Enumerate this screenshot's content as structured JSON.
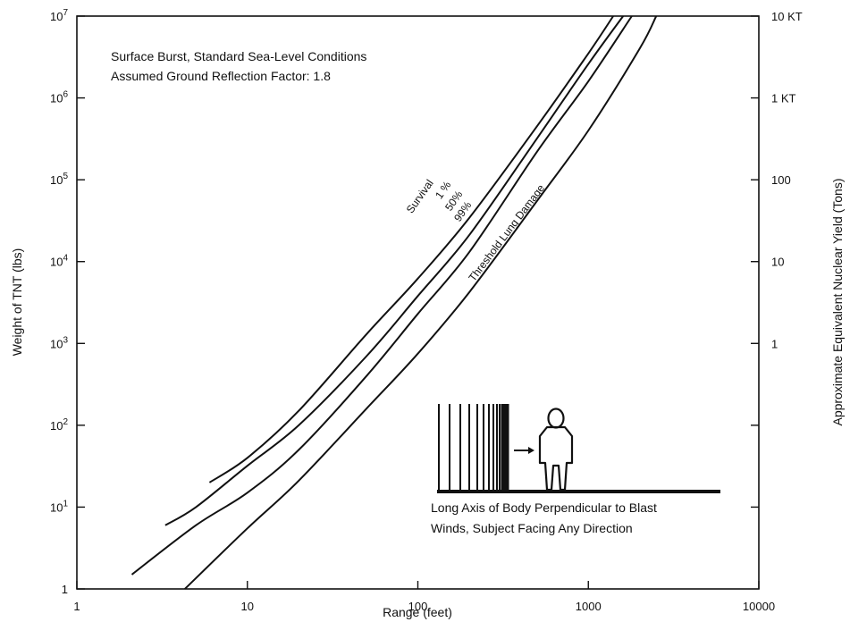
{
  "chart_data": {
    "type": "line",
    "title": "",
    "annotation_lines": [
      "Surface Burst, Standard Sea-Level Conditions",
      "Assumed Ground Reflection Factor: 1.8"
    ],
    "xlabel": "Range (feet)",
    "ylabel": "Weight of TNT (lbs)",
    "y2label": "Approximate Equivalent Nuclear Yield (Tons)",
    "x_scale": "log",
    "y_scale": "log",
    "xlim": [
      1,
      10000
    ],
    "ylim": [
      1,
      10000000
    ],
    "x_ticks": [
      {
        "value": 1,
        "label": "1"
      },
      {
        "value": 10,
        "label": "10"
      },
      {
        "value": 100,
        "label": "100"
      },
      {
        "value": 1000,
        "label": "1000"
      },
      {
        "value": 10000,
        "label": "10000"
      }
    ],
    "y_ticks": [
      {
        "value": 1,
        "label": "1"
      },
      {
        "value": 10,
        "label": "10",
        "exp": "1"
      },
      {
        "value": 100,
        "label": "10",
        "exp": "2"
      },
      {
        "value": 1000,
        "label": "10",
        "exp": "3"
      },
      {
        "value": 10000,
        "label": "10",
        "exp": "4"
      },
      {
        "value": 100000,
        "label": "10",
        "exp": "5"
      },
      {
        "value": 1000000,
        "label": "10",
        "exp": "6"
      },
      {
        "value": 10000000,
        "label": "10",
        "exp": "7"
      }
    ],
    "y2_ticks": [
      {
        "value": 10000000,
        "label": "10 KT"
      },
      {
        "value": 1000000,
        "label": "1 KT"
      },
      {
        "value": 100000,
        "label": "100"
      },
      {
        "value": 10000,
        "label": "10"
      },
      {
        "value": 1000,
        "label": "1"
      },
      {
        "value": 100,
        "label": ""
      },
      {
        "value": 10,
        "label": ""
      }
    ],
    "series": [
      {
        "name": "Survival 1 %",
        "points": [
          [
            6,
            20
          ],
          [
            10,
            40
          ],
          [
            20,
            150
          ],
          [
            50,
            1300
          ],
          [
            100,
            6200
          ],
          [
            200,
            34000
          ],
          [
            500,
            450000
          ],
          [
            1000,
            3500000
          ],
          [
            1400,
            10000000
          ]
        ]
      },
      {
        "name": "50%",
        "points": [
          [
            3.3,
            6
          ],
          [
            5,
            10
          ],
          [
            10,
            32
          ],
          [
            20,
            100
          ],
          [
            50,
            700
          ],
          [
            100,
            3800
          ],
          [
            200,
            21000
          ],
          [
            500,
            320000
          ],
          [
            1000,
            2600000
          ],
          [
            1600,
            10000000
          ]
        ]
      },
      {
        "name": "99%",
        "points": [
          [
            2.1,
            1.5
          ],
          [
            5,
            6
          ],
          [
            10,
            15
          ],
          [
            20,
            50
          ],
          [
            50,
            400
          ],
          [
            100,
            2300
          ],
          [
            200,
            13000
          ],
          [
            500,
            220000
          ],
          [
            1000,
            1600000
          ],
          [
            1800,
            10000000
          ]
        ]
      },
      {
        "name": "Threshold Lung Damage",
        "points": [
          [
            4.3,
            1
          ],
          [
            10,
            5.5
          ],
          [
            20,
            21
          ],
          [
            50,
            160
          ],
          [
            100,
            750
          ],
          [
            200,
            4200
          ],
          [
            500,
            55000
          ],
          [
            1000,
            400000
          ],
          [
            2000,
            4000000
          ],
          [
            2500,
            10000000
          ]
        ]
      }
    ],
    "curve_labels": [
      "Survival",
      "1 %",
      "50%",
      "99%",
      "Threshold Lung Damage"
    ],
    "inset_caption_lines": [
      "Long Axis of Body Perpendicular to Blast",
      "Winds, Subject Facing Any Direction"
    ],
    "grid": false,
    "legend": "none"
  }
}
